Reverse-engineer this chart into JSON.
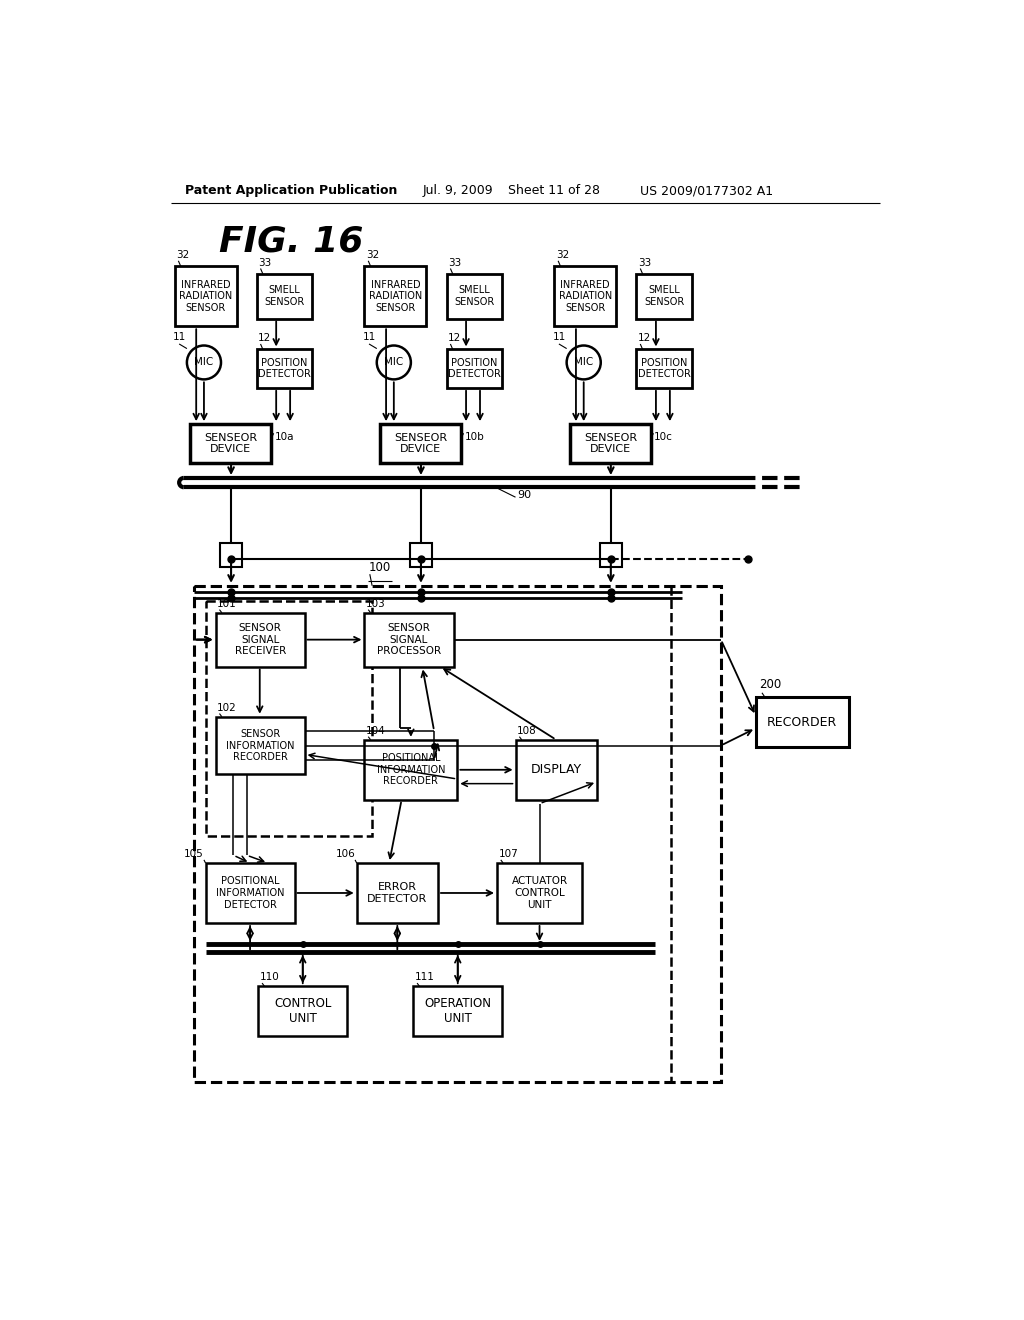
{
  "bg_color": "#ffffff",
  "fig_title": "FIG. 16",
  "header_left": "Patent Application Publication",
  "header_mid1": "Jul. 9, 2009",
  "header_mid2": "Sheet 11 of 28",
  "header_right": "US 2009/0177302 A1"
}
